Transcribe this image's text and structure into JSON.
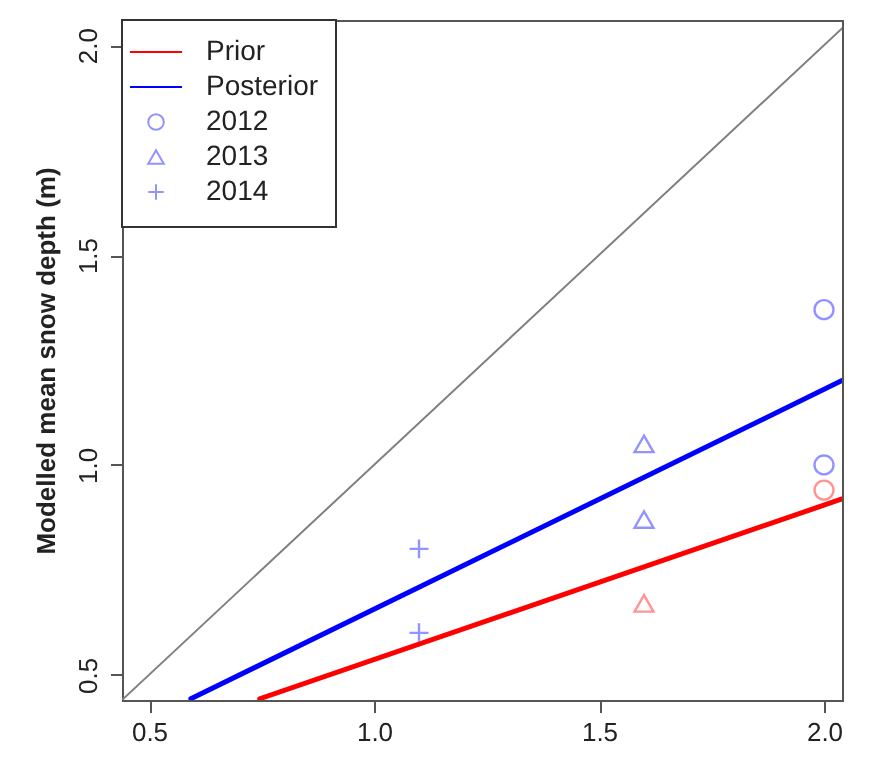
{
  "chart_data": {
    "type": "scatter",
    "ylabel": "Modelled mean snow depth (m)",
    "xlim": [
      0.44,
      2.04
    ],
    "ylim": [
      0.44,
      2.06
    ],
    "xticks": [
      0.5,
      {
        "value": 1,
        "label": "1.0"
      },
      1.5,
      {
        "value": 2,
        "label": "2.0"
      }
    ],
    "yticks": [
      0.5,
      {
        "value": 1,
        "label": "1.0"
      },
      1.5,
      {
        "value": 2,
        "label": "2.0"
      }
    ],
    "grid": false,
    "legend": "top left",
    "series": [
      {
        "type": "line",
        "color": "#808080",
        "x": [
          0.44,
          2.04
        ],
        "values": [
          0.44,
          2.04
        ]
      },
      {
        "name": "Prior",
        "type": "line",
        "color": "#ff0000",
        "x": [
          0.746,
          2.04
        ],
        "values": [
          0.443,
          0.919
        ]
      },
      {
        "name": "Posterior",
        "type": "line",
        "color": "#0000ff",
        "x": [
          0.593,
          2.04
        ],
        "values": [
          0.443,
          1.201
        ]
      },
      {
        "name": "2012",
        "marker": "circle",
        "color": "#6666ff",
        "x": [
          2.0,
          2.0,
          2.0
        ],
        "values": [
          1.37,
          1.0,
          0.94
        ],
        "colors": [
          "#6666ff",
          "#6666ff",
          "#ff6666"
        ]
      },
      {
        "name": "2013",
        "marker": "triangle",
        "color": "#6666ff",
        "x": [
          1.6,
          1.6,
          1.6
        ],
        "values": [
          1.05,
          0.87,
          0.67
        ],
        "colors": [
          "#6666ff",
          "#6666ff",
          "#ff6666"
        ]
      },
      {
        "name": "2014",
        "marker": "cross",
        "color": "#6666ff",
        "x": [
          1.1,
          1.1
        ],
        "values": [
          0.8,
          0.6
        ],
        "colors": [
          "#6666ff",
          "#6666ff"
        ]
      }
    ]
  }
}
